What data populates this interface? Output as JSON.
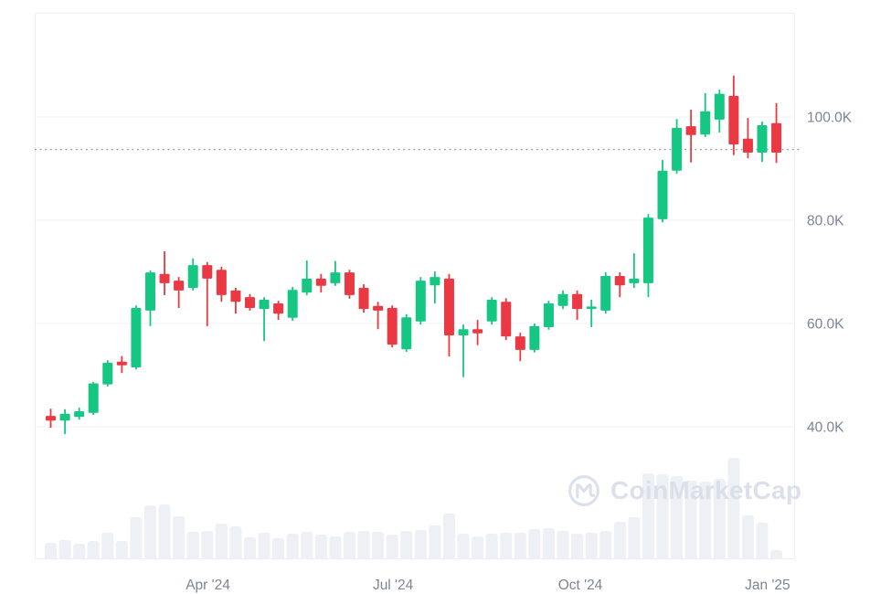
{
  "watermark": {
    "text": "CoinMarketCap",
    "logo_icon": "coinmarketcap-logo"
  },
  "colors": {
    "up": "#16c784",
    "down": "#ea3943",
    "grid": "#eff1f5",
    "border": "#eceff3",
    "axis_text": "#7c8596",
    "volume_bar": "#edf0f4",
    "watermark": "#d9deea",
    "price_line": "#9298a9",
    "background": "#ffffff"
  },
  "chart_data": {
    "type": "candlestick",
    "title": "",
    "unit": "K",
    "legend": [],
    "grid": "horizontal-only",
    "y_axis": {
      "side": "right",
      "ticks": [
        {
          "label": "100.0K",
          "value": 100
        },
        {
          "label": "80.0K",
          "value": 80
        },
        {
          "label": "60.0K",
          "value": 60
        },
        {
          "label": "40.0K",
          "value": 40
        }
      ],
      "range_top_value": 120,
      "range": [
        36,
        120
      ]
    },
    "x_axis": {
      "ticks": [
        {
          "label": "Apr '24",
          "candle_index": 12.05
        },
        {
          "label": "Jul '24",
          "candle_index": 25.06
        },
        {
          "label": "Oct '24",
          "candle_index": 38.22
        },
        {
          "label": "Jan '25",
          "candle_index": 51.38
        }
      ]
    },
    "current_price_line": {
      "value": 93.7,
      "style": "dotted"
    },
    "volume_note": "v is relative volume height in px as drawn (max 111)",
    "candles": [
      {
        "o": 42.1,
        "h": 43.5,
        "l": 39.8,
        "c": 41.2,
        "v": 18
      },
      {
        "o": 41.2,
        "h": 43.4,
        "l": 38.6,
        "c": 42.5,
        "v": 21
      },
      {
        "o": 41.9,
        "h": 43.7,
        "l": 41.4,
        "c": 43.0,
        "v": 17
      },
      {
        "o": 42.7,
        "h": 48.7,
        "l": 42.3,
        "c": 48.4,
        "v": 20
      },
      {
        "o": 48.2,
        "h": 52.9,
        "l": 47.8,
        "c": 52.4,
        "v": 29
      },
      {
        "o": 52.6,
        "h": 53.7,
        "l": 50.4,
        "c": 51.9,
        "v": 20
      },
      {
        "o": 51.5,
        "h": 63.5,
        "l": 51.1,
        "c": 63.0,
        "v": 46
      },
      {
        "o": 62.5,
        "h": 70.3,
        "l": 59.5,
        "c": 69.9,
        "v": 59
      },
      {
        "o": 69.6,
        "h": 74.0,
        "l": 65.5,
        "c": 67.8,
        "v": 60
      },
      {
        "o": 68.3,
        "h": 69.0,
        "l": 63.0,
        "c": 66.4,
        "v": 47
      },
      {
        "o": 66.9,
        "h": 72.6,
        "l": 66.4,
        "c": 71.3,
        "v": 30
      },
      {
        "o": 71.3,
        "h": 71.9,
        "l": 59.5,
        "c": 68.7,
        "v": 31
      },
      {
        "o": 70.4,
        "h": 71.0,
        "l": 64.2,
        "c": 65.5,
        "v": 39
      },
      {
        "o": 66.4,
        "h": 66.9,
        "l": 61.9,
        "c": 64.2,
        "v": 36
      },
      {
        "o": 65.1,
        "h": 65.7,
        "l": 62.5,
        "c": 63.0,
        "v": 24
      },
      {
        "o": 62.8,
        "h": 65.1,
        "l": 56.6,
        "c": 64.6,
        "v": 29
      },
      {
        "o": 63.9,
        "h": 64.4,
        "l": 60.7,
        "c": 61.9,
        "v": 23
      },
      {
        "o": 61.1,
        "h": 67.1,
        "l": 60.5,
        "c": 66.5,
        "v": 28
      },
      {
        "o": 66.0,
        "h": 72.2,
        "l": 65.5,
        "c": 68.7,
        "v": 30
      },
      {
        "o": 68.7,
        "h": 69.6,
        "l": 66.0,
        "c": 67.3,
        "v": 27
      },
      {
        "o": 67.8,
        "h": 72.1,
        "l": 67.3,
        "c": 69.9,
        "v": 25
      },
      {
        "o": 69.9,
        "h": 70.4,
        "l": 64.8,
        "c": 65.5,
        "v": 30
      },
      {
        "o": 66.9,
        "h": 67.6,
        "l": 62.1,
        "c": 62.8,
        "v": 31
      },
      {
        "o": 63.4,
        "h": 64.2,
        "l": 58.9,
        "c": 62.5,
        "v": 30
      },
      {
        "o": 63.0,
        "h": 63.5,
        "l": 55.4,
        "c": 55.9,
        "v": 27
      },
      {
        "o": 55.0,
        "h": 61.8,
        "l": 54.5,
        "c": 61.2,
        "v": 31
      },
      {
        "o": 60.4,
        "h": 69.0,
        "l": 59.8,
        "c": 68.3,
        "v": 32
      },
      {
        "o": 67.4,
        "h": 70.1,
        "l": 63.9,
        "c": 69.0,
        "v": 37
      },
      {
        "o": 68.7,
        "h": 69.6,
        "l": 53.6,
        "c": 57.7,
        "v": 50
      },
      {
        "o": 57.7,
        "h": 59.8,
        "l": 49.6,
        "c": 58.9,
        "v": 28
      },
      {
        "o": 58.9,
        "h": 60.7,
        "l": 55.8,
        "c": 58.1,
        "v": 25
      },
      {
        "o": 60.4,
        "h": 65.1,
        "l": 59.8,
        "c": 64.6,
        "v": 28
      },
      {
        "o": 64.2,
        "h": 64.9,
        "l": 56.8,
        "c": 57.5,
        "v": 29
      },
      {
        "o": 57.5,
        "h": 58.2,
        "l": 52.7,
        "c": 54.9,
        "v": 29
      },
      {
        "o": 54.9,
        "h": 60.0,
        "l": 54.4,
        "c": 59.5,
        "v": 33
      },
      {
        "o": 59.3,
        "h": 64.4,
        "l": 58.8,
        "c": 63.9,
        "v": 34
      },
      {
        "o": 63.4,
        "h": 66.4,
        "l": 62.8,
        "c": 65.7,
        "v": 31
      },
      {
        "o": 65.7,
        "h": 66.4,
        "l": 60.7,
        "c": 62.8,
        "v": 28
      },
      {
        "o": 62.8,
        "h": 64.6,
        "l": 59.3,
        "c": 63.3,
        "v": 29
      },
      {
        "o": 62.5,
        "h": 69.9,
        "l": 61.9,
        "c": 69.2,
        "v": 31
      },
      {
        "o": 69.2,
        "h": 69.9,
        "l": 65.1,
        "c": 67.4,
        "v": 41
      },
      {
        "o": 67.8,
        "h": 73.6,
        "l": 66.9,
        "c": 68.7,
        "v": 46
      },
      {
        "o": 67.8,
        "h": 81.2,
        "l": 65.1,
        "c": 80.5,
        "v": 94
      },
      {
        "o": 80.2,
        "h": 91.7,
        "l": 79.6,
        "c": 89.6,
        "v": 93
      },
      {
        "o": 89.6,
        "h": 99.6,
        "l": 89.0,
        "c": 97.9,
        "v": 91
      },
      {
        "o": 98.2,
        "h": 101.4,
        "l": 91.2,
        "c": 96.5,
        "v": 86
      },
      {
        "o": 96.6,
        "h": 104.6,
        "l": 96.1,
        "c": 101.1,
        "v": 85
      },
      {
        "o": 99.5,
        "h": 105.3,
        "l": 97.0,
        "c": 104.5,
        "v": 88
      },
      {
        "o": 104.1,
        "h": 108.0,
        "l": 92.6,
        "c": 94.7,
        "v": 111
      },
      {
        "o": 95.8,
        "h": 99.8,
        "l": 92.0,
        "c": 93.1,
        "v": 48
      },
      {
        "o": 93.1,
        "h": 99.1,
        "l": 91.3,
        "c": 98.4,
        "v": 40
      },
      {
        "o": 98.8,
        "h": 102.7,
        "l": 91.1,
        "c": 93.1,
        "v": 10
      }
    ]
  }
}
